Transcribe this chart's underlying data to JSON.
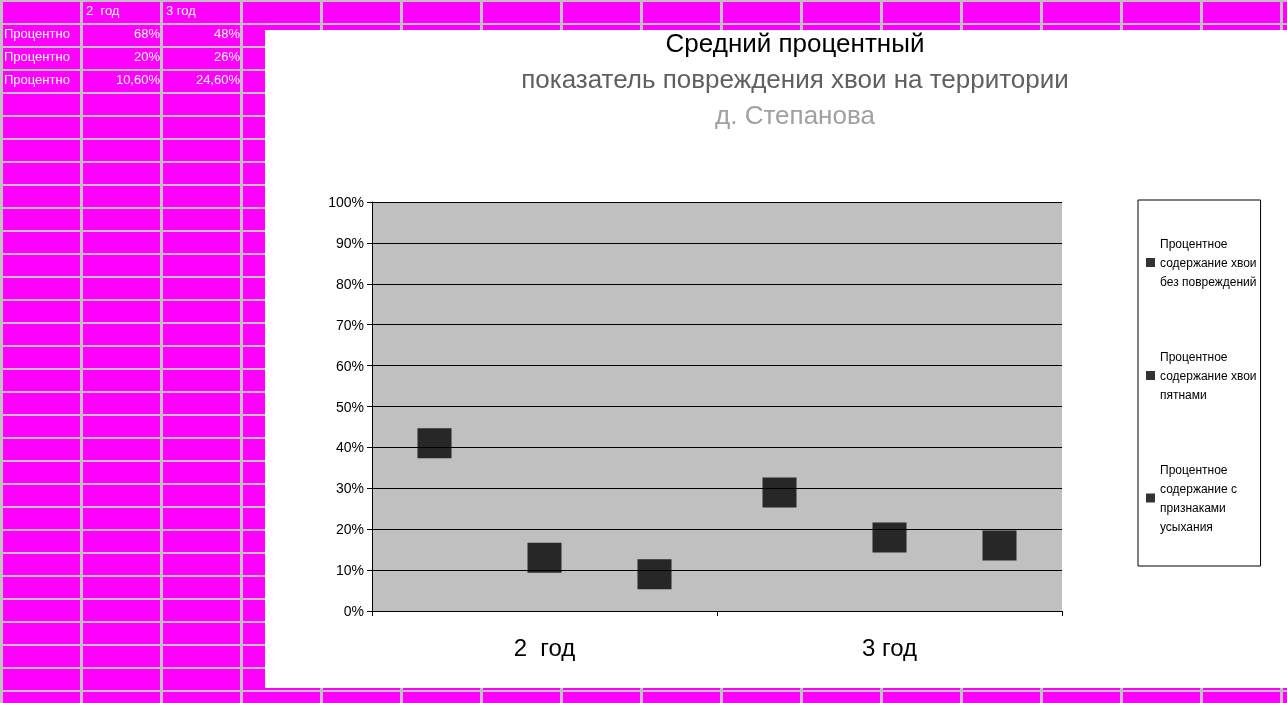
{
  "chart_data": {
    "type": "scatter",
    "title": "Средний процентный\nпоказатель повреждения хвои на территории\nд. Степанова",
    "categories": [
      "2  год",
      "3 год"
    ],
    "series": [
      {
        "name": "Процентное содержание хвои без повреждений",
        "color": "#000000",
        "values": [
          41,
          29
        ]
      },
      {
        "name": "Процентное содержание хвои пятнами",
        "color": "#000000",
        "values": [
          13,
          18
        ]
      },
      {
        "name": "Процентное содержание с признаками усыхания",
        "color": "#000000",
        "values": [
          9,
          16
        ]
      }
    ],
    "ylim": [
      0,
      100
    ],
    "yticks": [
      {
        "value": 0,
        "label": "0%"
      },
      {
        "value": 10,
        "label": "10%"
      },
      {
        "value": 20,
        "label": "20%"
      },
      {
        "value": 30,
        "label": "30%"
      },
      {
        "value": 40,
        "label": "40%"
      },
      {
        "value": 50,
        "label": "50%"
      },
      {
        "value": 60,
        "label": "60%"
      },
      {
        "value": 70,
        "label": "70%"
      },
      {
        "value": 80,
        "label": "80%"
      },
      {
        "value": 90,
        "label": "90%"
      },
      {
        "value": 100,
        "label": "100%"
      }
    ],
    "grid": "y",
    "legend": "right",
    "marker": "square",
    "annotations": [
      "2  год",
      "3 год",
      "Процентно",
      "68%",
      "48%",
      "Процентно",
      "20%",
      "26%",
      "Процентно",
      "10,60%",
      "24,60%"
    ]
  }
}
